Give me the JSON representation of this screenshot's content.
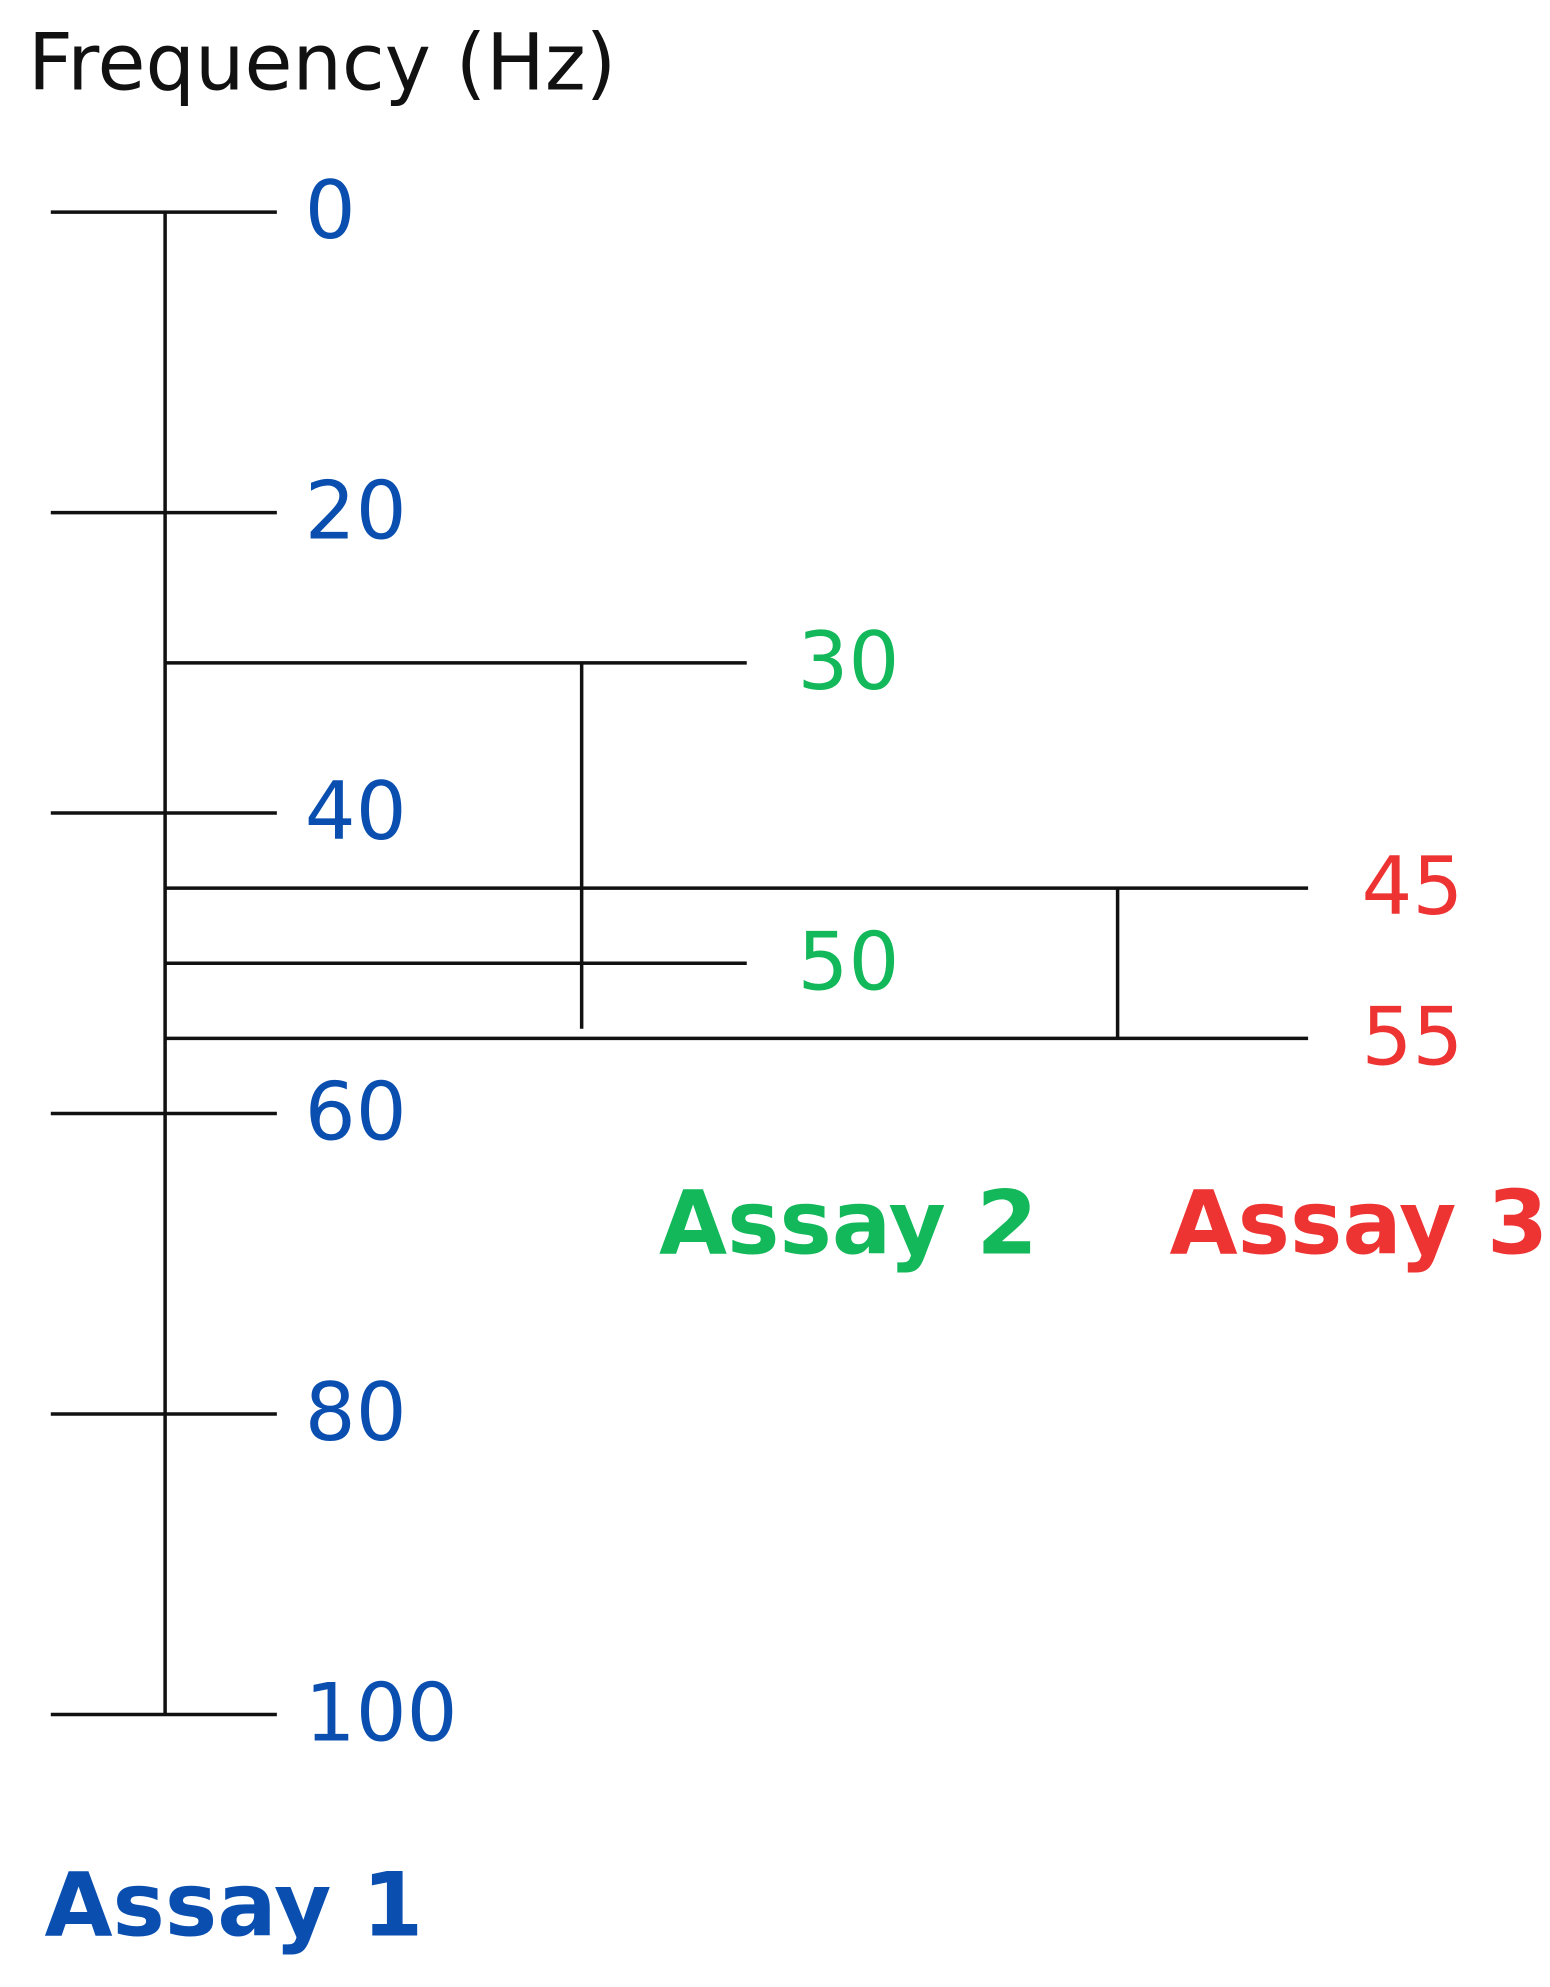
{
  "title": "Frequency (Hz)",
  "assays": [
    {
      "name": "Assay 1",
      "color": "#0a4fb0",
      "ticks": [
        0,
        20,
        40,
        60,
        80,
        100
      ]
    },
    {
      "name": "Assay 2",
      "color": "#12b85a",
      "ticks": [
        30,
        50
      ]
    },
    {
      "name": "Assay 3",
      "color": "#ee3333",
      "ticks": [
        45,
        55
      ]
    }
  ]
}
